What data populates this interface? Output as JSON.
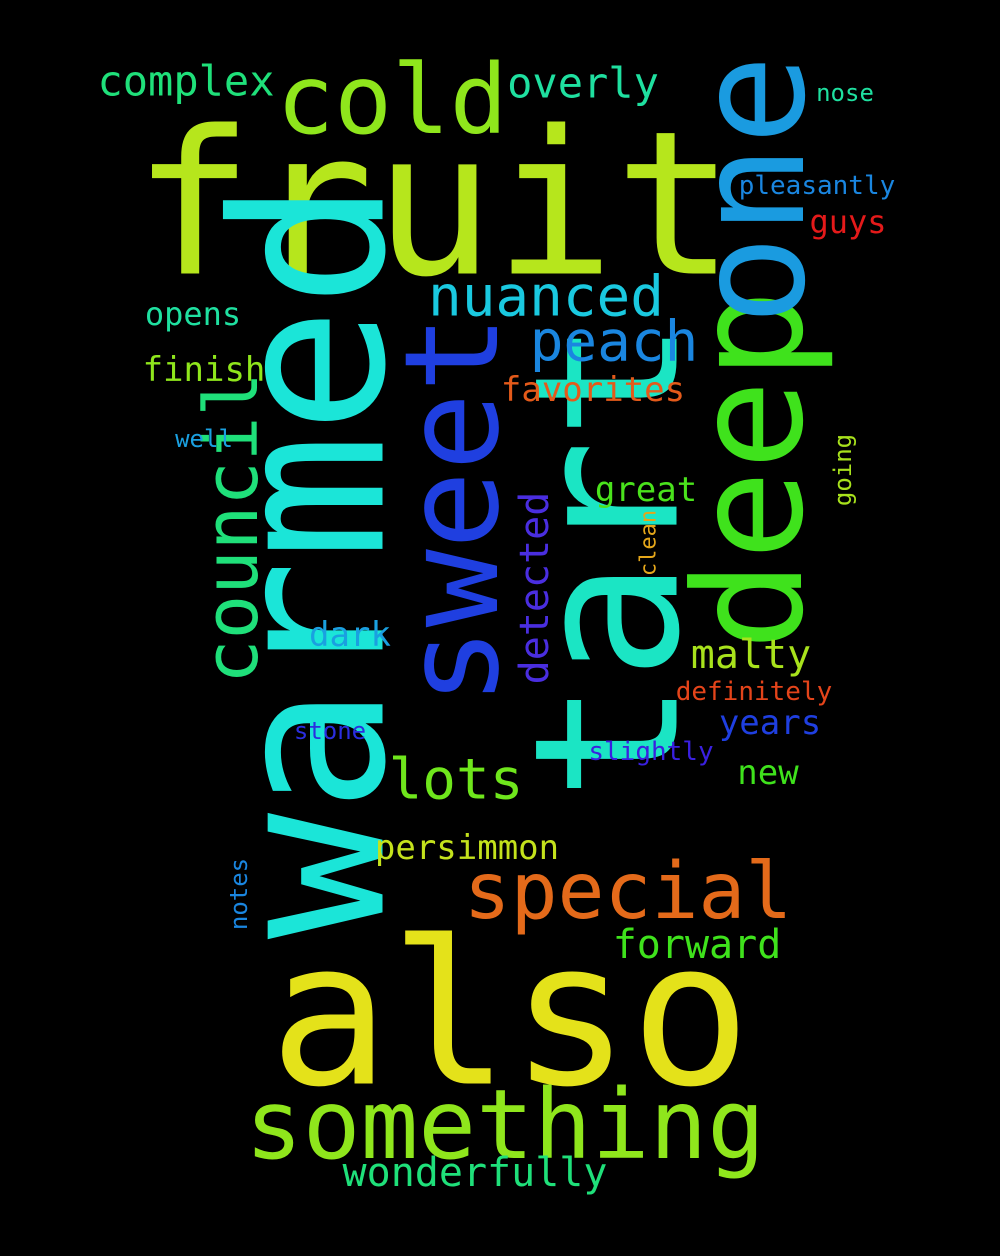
{
  "words": [
    {
      "text": "fruit",
      "color": "#b6e61c",
      "rotated": false
    },
    {
      "text": "also",
      "color": "#e4e21a",
      "rotated": false
    },
    {
      "text": "warmed",
      "color": "#1be5d8",
      "rotated": true
    },
    {
      "text": "tart",
      "color": "#1be5c4",
      "rotated": true
    },
    {
      "text": "sweet",
      "color": "#1f3fe0",
      "rotated": true
    },
    {
      "text": "deep",
      "color": "#3fe21c",
      "rotated": true
    },
    {
      "text": "one",
      "color": "#1a9be0",
      "rotated": true
    },
    {
      "text": "cold",
      "color": "#8fe61c",
      "rotated": false
    },
    {
      "text": "something",
      "color": "#8fe61c",
      "rotated": false
    },
    {
      "text": "special",
      "color": "#e46a1a",
      "rotated": false
    },
    {
      "text": "council",
      "color": "#1fe07a",
      "rotated": true
    },
    {
      "text": "nuanced",
      "color": "#1ac9e0",
      "rotated": false
    },
    {
      "text": "peach",
      "color": "#1a86e0",
      "rotated": false
    },
    {
      "text": "lots",
      "color": "#6fe61c",
      "rotated": false
    },
    {
      "text": "complex",
      "color": "#1fe07a",
      "rotated": false
    },
    {
      "text": "overly",
      "color": "#1fe0a0",
      "rotated": false
    },
    {
      "text": "wonderfully",
      "color": "#1fe07a",
      "rotated": false
    },
    {
      "text": "forward",
      "color": "#3fe21c",
      "rotated": false
    },
    {
      "text": "malty",
      "color": "#a8e21c",
      "rotated": false
    },
    {
      "text": "detected",
      "color": "#4a2ee0",
      "rotated": true
    },
    {
      "text": "persimmon",
      "color": "#c4e21c",
      "rotated": false
    },
    {
      "text": "favorites",
      "color": "#e45a1a",
      "rotated": false
    },
    {
      "text": "finish",
      "color": "#8fe61c",
      "rotated": false
    },
    {
      "text": "great",
      "color": "#4ae21c",
      "rotated": false
    },
    {
      "text": "dark",
      "color": "#1aa0e0",
      "rotated": false
    },
    {
      "text": "new",
      "color": "#3fe21c",
      "rotated": false
    },
    {
      "text": "years",
      "color": "#1f3fe0",
      "rotated": false
    },
    {
      "text": "opens",
      "color": "#1fe0a0",
      "rotated": false
    },
    {
      "text": "guys",
      "color": "#e41a1a",
      "rotated": false
    },
    {
      "text": "pleasantly",
      "color": "#1a86e0",
      "rotated": false
    },
    {
      "text": "definitely",
      "color": "#e4441a",
      "rotated": false
    },
    {
      "text": "slightly",
      "color": "#3a20e0",
      "rotated": false
    },
    {
      "text": "stone",
      "color": "#2a2ee0",
      "rotated": false
    },
    {
      "text": "nose",
      "color": "#1fe0a0",
      "rotated": false
    },
    {
      "text": "well",
      "color": "#1aa0e0",
      "rotated": false
    },
    {
      "text": "going",
      "color": "#a8e21c",
      "rotated": true
    },
    {
      "text": "clean",
      "color": "#e4a61a",
      "rotated": true
    },
    {
      "text": "notes",
      "color": "#1a86e0",
      "rotated": true
    }
  ]
}
